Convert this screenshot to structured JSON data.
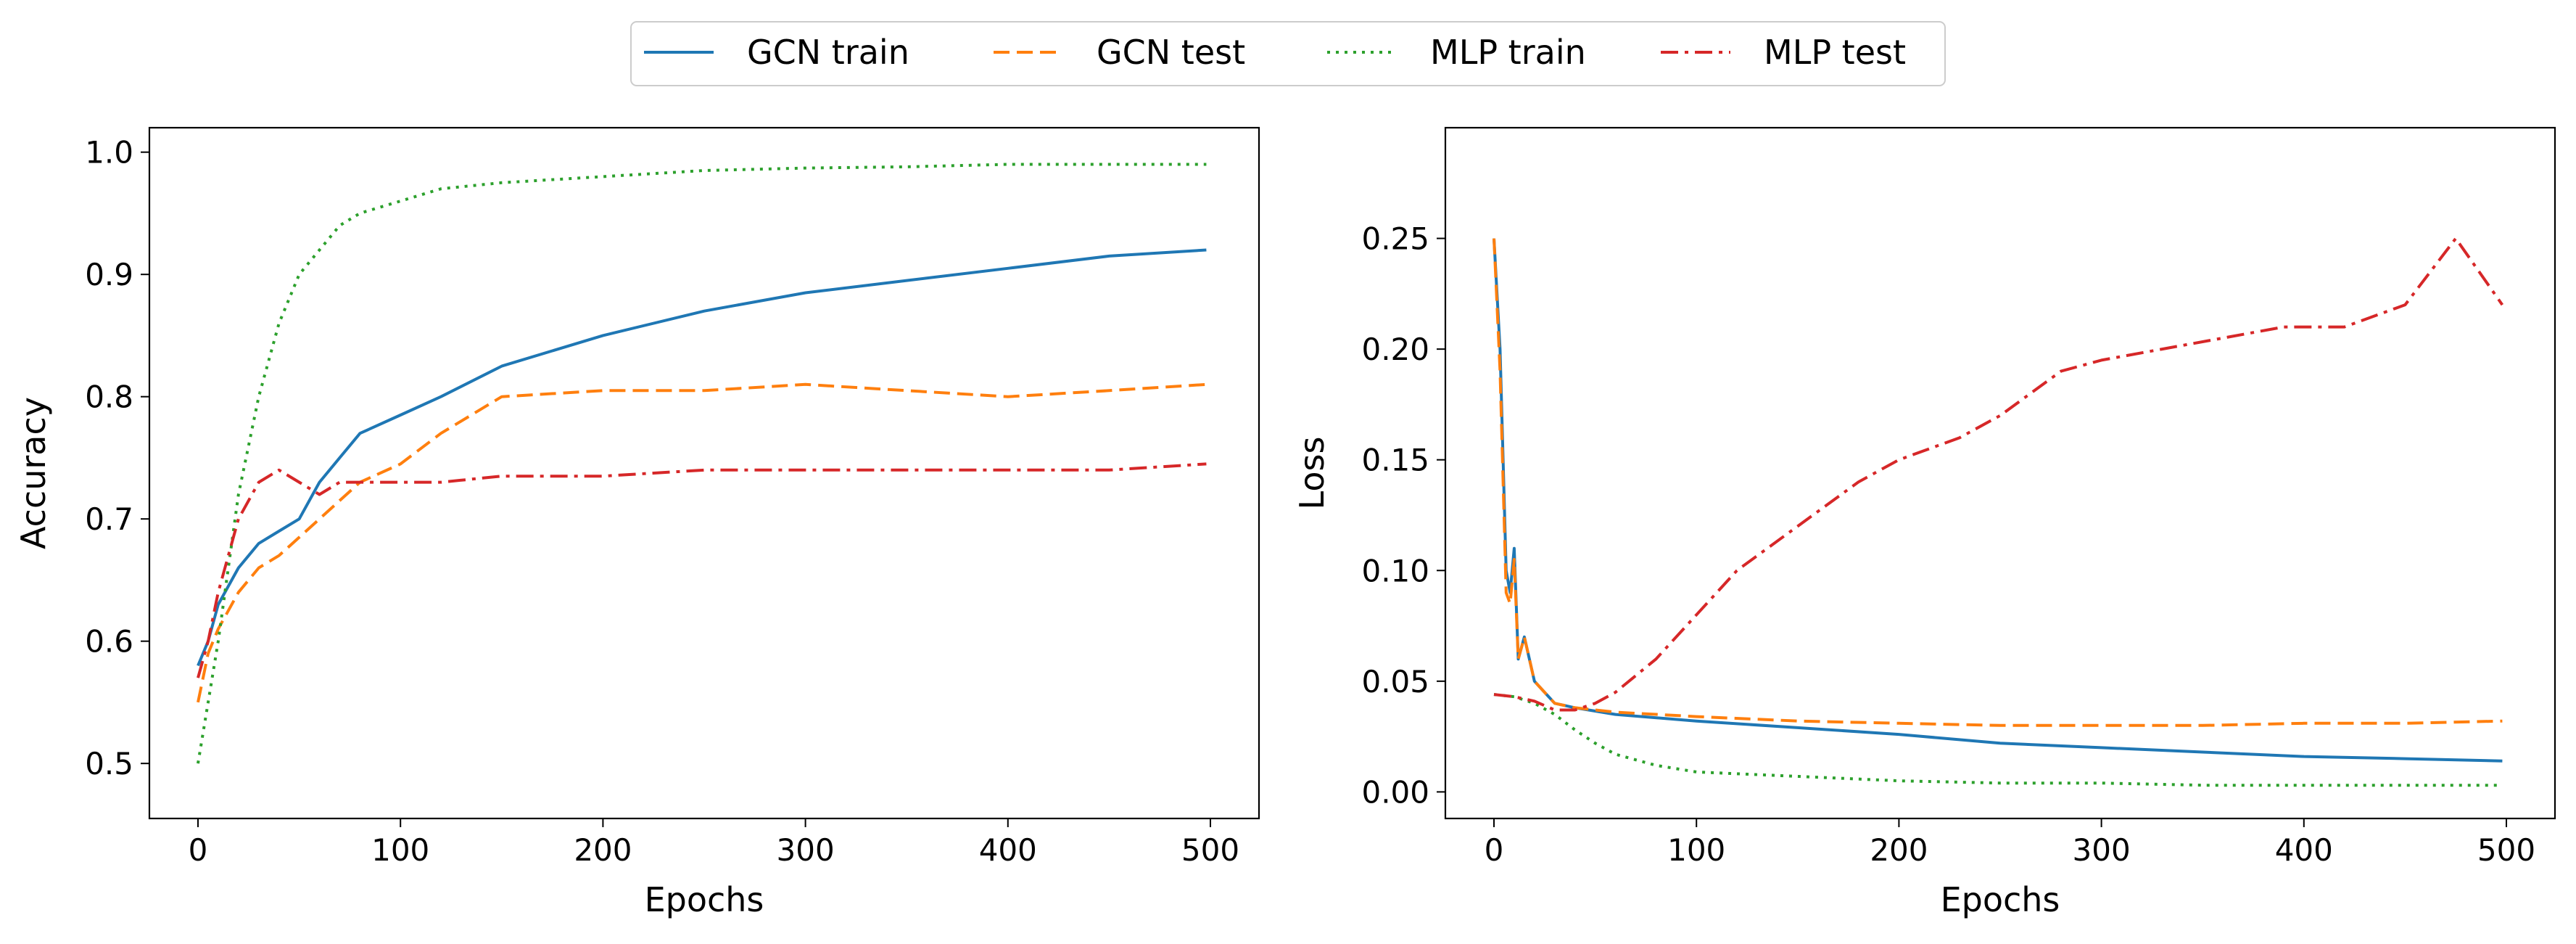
{
  "chart_data": {
    "legend": {
      "placement": "top-center",
      "entries": [
        {
          "label": "GCN train",
          "color": "#1f77b4",
          "style": "solid"
        },
        {
          "label": "GCN test",
          "color": "#ff7f0e",
          "style": "dashed"
        },
        {
          "label": "MLP train",
          "color": "#2ca02c",
          "style": "dotted"
        },
        {
          "label": "MLP test",
          "color": "#d62728",
          "style": "dashdot"
        }
      ]
    },
    "charts": [
      {
        "type": "line",
        "xlabel": "Epochs",
        "ylabel": "Accuracy",
        "xlim": [
          -24,
          524
        ],
        "ylim": [
          0.455,
          1.02
        ],
        "xticks": [
          0,
          100,
          200,
          300,
          400,
          500
        ],
        "yticks": [
          0.5,
          0.6,
          0.7,
          0.8,
          0.9,
          1.0
        ],
        "ytick_labels": [
          "0.5",
          "0.6",
          "0.7",
          "0.8",
          "0.9",
          "1.0"
        ],
        "grid": false,
        "series": [
          {
            "name": "GCN train",
            "color": "#1f77b4",
            "style": "solid",
            "x": [
              0,
              5,
              10,
              20,
              30,
              40,
              50,
              60,
              70,
              80,
              100,
              120,
              150,
              200,
              250,
              300,
              350,
              400,
              450,
              498
            ],
            "y": [
              0.58,
              0.6,
              0.63,
              0.66,
              0.68,
              0.69,
              0.7,
              0.73,
              0.75,
              0.77,
              0.785,
              0.8,
              0.825,
              0.85,
              0.87,
              0.885,
              0.895,
              0.905,
              0.915,
              0.92
            ]
          },
          {
            "name": "GCN test",
            "color": "#ff7f0e",
            "style": "dashed",
            "x": [
              0,
              5,
              10,
              20,
              30,
              40,
              50,
              60,
              70,
              80,
              100,
              120,
              150,
              200,
              250,
              300,
              350,
              400,
              450,
              498
            ],
            "y": [
              0.55,
              0.59,
              0.61,
              0.64,
              0.66,
              0.67,
              0.685,
              0.7,
              0.715,
              0.73,
              0.745,
              0.77,
              0.8,
              0.805,
              0.805,
              0.81,
              0.805,
              0.8,
              0.805,
              0.81
            ]
          },
          {
            "name": "MLP train",
            "color": "#2ca02c",
            "style": "dotted",
            "x": [
              0,
              5,
              10,
              20,
              30,
              40,
              50,
              60,
              70,
              80,
              100,
              120,
              150,
              200,
              250,
              300,
              350,
              400,
              450,
              498
            ],
            "y": [
              0.5,
              0.55,
              0.6,
              0.72,
              0.8,
              0.86,
              0.9,
              0.92,
              0.94,
              0.95,
              0.96,
              0.97,
              0.975,
              0.98,
              0.985,
              0.987,
              0.988,
              0.99,
              0.99,
              0.99
            ]
          },
          {
            "name": "MLP test",
            "color": "#d62728",
            "style": "dashdot",
            "x": [
              0,
              5,
              10,
              20,
              30,
              40,
              50,
              60,
              70,
              80,
              100,
              120,
              150,
              200,
              250,
              300,
              350,
              400,
              450,
              498
            ],
            "y": [
              0.57,
              0.6,
              0.64,
              0.7,
              0.73,
              0.74,
              0.73,
              0.72,
              0.73,
              0.73,
              0.73,
              0.73,
              0.735,
              0.735,
              0.74,
              0.74,
              0.74,
              0.74,
              0.74,
              0.745
            ]
          }
        ]
      },
      {
        "type": "line",
        "xlabel": "Epochs",
        "ylabel": "Loss",
        "xlim": [
          -24,
          524
        ],
        "ylim": [
          -0.012,
          0.3
        ],
        "xticks": [
          0,
          100,
          200,
          300,
          400,
          500
        ],
        "yticks": [
          0.0,
          0.05,
          0.1,
          0.15,
          0.2,
          0.25
        ],
        "ytick_labels": [
          "0.00",
          "0.05",
          "0.10",
          "0.15",
          "0.20",
          "0.25"
        ],
        "grid": false,
        "series": [
          {
            "name": "GCN train",
            "color": "#1f77b4",
            "style": "solid",
            "x": [
              0,
              3,
              6,
              8,
              10,
              12,
              15,
              20,
              25,
              30,
              40,
              60,
              100,
              150,
              200,
              250,
              300,
              350,
              400,
              450,
              498
            ],
            "y": [
              0.25,
              0.2,
              0.1,
              0.09,
              0.11,
              0.06,
              0.07,
              0.05,
              0.045,
              0.04,
              0.038,
              0.035,
              0.032,
              0.029,
              0.026,
              0.022,
              0.02,
              0.018,
              0.016,
              0.015,
              0.014
            ]
          },
          {
            "name": "GCN test",
            "color": "#ff7f0e",
            "style": "dashed",
            "x": [
              0,
              3,
              6,
              8,
              10,
              12,
              15,
              20,
              25,
              30,
              40,
              60,
              100,
              150,
              200,
              250,
              300,
              350,
              400,
              450,
              498
            ],
            "y": [
              0.25,
              0.19,
              0.09,
              0.085,
              0.105,
              0.06,
              0.07,
              0.05,
              0.045,
              0.04,
              0.038,
              0.036,
              0.034,
              0.032,
              0.031,
              0.03,
              0.03,
              0.03,
              0.031,
              0.031,
              0.032
            ]
          },
          {
            "name": "MLP train",
            "color": "#2ca02c",
            "style": "dotted",
            "x": [
              0,
              10,
              20,
              30,
              40,
              50,
              60,
              80,
              100,
              150,
              200,
              250,
              300,
              350,
              400,
              450,
              498
            ],
            "y": [
              0.044,
              0.043,
              0.04,
              0.035,
              0.028,
              0.022,
              0.017,
              0.012,
              0.009,
              0.007,
              0.005,
              0.004,
              0.004,
              0.003,
              0.003,
              0.003,
              0.003
            ]
          },
          {
            "name": "MLP test",
            "color": "#d62728",
            "style": "dashdot",
            "x": [
              0,
              10,
              20,
              30,
              40,
              50,
              60,
              80,
              100,
              120,
              150,
              180,
              200,
              230,
              250,
              280,
              300,
              330,
              360,
              390,
              420,
              450,
              475,
              498
            ],
            "y": [
              0.044,
              0.043,
              0.041,
              0.037,
              0.037,
              0.04,
              0.045,
              0.06,
              0.08,
              0.1,
              0.12,
              0.14,
              0.15,
              0.16,
              0.17,
              0.19,
              0.195,
              0.2,
              0.205,
              0.21,
              0.21,
              0.22,
              0.25,
              0.22
            ]
          }
        ]
      }
    ]
  }
}
